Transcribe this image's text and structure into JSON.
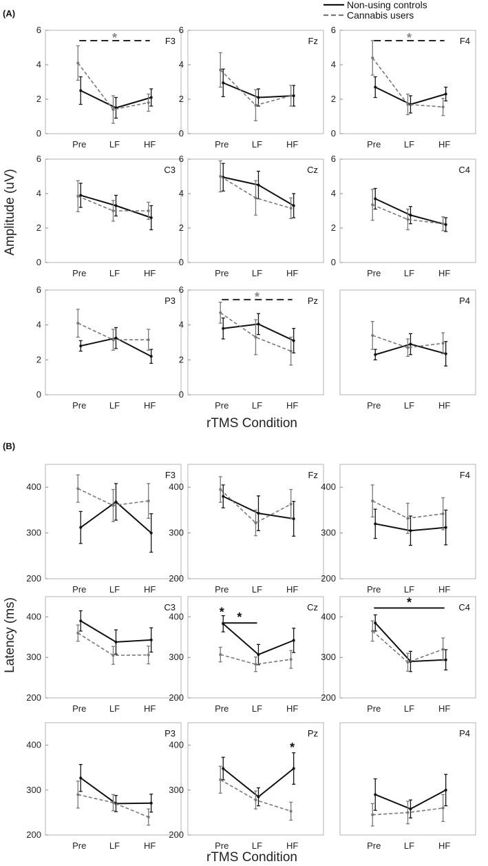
{
  "legend": {
    "items": [
      {
        "label": "Non-using controls",
        "style": "solid",
        "color": "#111111"
      },
      {
        "label": "Cannabis users",
        "style": "dashed",
        "color": "#777777"
      }
    ]
  },
  "sections": [
    {
      "label": "(A)",
      "ylabel": "Amplitude (uV)",
      "xlabel": "rTMS Condition",
      "chart_data": [
        {
          "type": "line",
          "title": "F3",
          "categories": [
            "Pre",
            "LF",
            "HF"
          ],
          "ylim": [
            0,
            6
          ],
          "yticks": [
            0,
            2,
            4,
            6
          ],
          "series": [
            {
              "name": "Non-using controls",
              "values": [
                2.5,
                1.5,
                2.1
              ],
              "err": [
                0.8,
                0.6,
                0.5
              ]
            },
            {
              "name": "Cannabis users",
              "values": [
                4.1,
                1.4,
                1.8
              ],
              "err": [
                1.0,
                0.8,
                0.5
              ]
            }
          ],
          "annotations": [
            {
              "text": "*",
              "style": "dashed",
              "from": "Pre",
              "to": "HF",
              "y": 5.4
            }
          ]
        },
        {
          "type": "line",
          "title": "Fz",
          "categories": [
            "Pre",
            "LF",
            "HF"
          ],
          "ylim": [
            0,
            6
          ],
          "yticks": [
            0,
            2,
            4,
            6
          ],
          "series": [
            {
              "name": "Non-using controls",
              "values": [
                2.95,
                2.1,
                2.2
              ],
              "err": [
                0.8,
                0.5,
                0.6
              ]
            },
            {
              "name": "Cannabis users",
              "values": [
                3.7,
                1.65,
                2.2
              ],
              "err": [
                1.0,
                0.9,
                0.6
              ]
            }
          ],
          "annotations": []
        },
        {
          "type": "line",
          "title": "F4",
          "categories": [
            "Pre",
            "LF",
            "HF"
          ],
          "ylim": [
            0,
            6
          ],
          "yticks": [
            0,
            2,
            4,
            6
          ],
          "series": [
            {
              "name": "Non-using controls",
              "values": [
                2.7,
                1.7,
                2.3
              ],
              "err": [
                0.6,
                0.5,
                0.4
              ]
            },
            {
              "name": "Cannabis users",
              "values": [
                4.4,
                1.7,
                1.55
              ],
              "err": [
                1.0,
                0.6,
                0.5
              ]
            }
          ],
          "annotations": [
            {
              "text": "*",
              "style": "dashed",
              "from": "Pre",
              "to": "HF",
              "y": 5.4
            }
          ]
        },
        {
          "type": "line",
          "title": "C3",
          "categories": [
            "Pre",
            "LF",
            "HF"
          ],
          "ylim": [
            0,
            6
          ],
          "yticks": [
            0,
            2,
            4,
            6
          ],
          "series": [
            {
              "name": "Non-using controls",
              "values": [
                3.9,
                3.3,
                2.6
              ],
              "err": [
                0.7,
                0.6,
                0.7
              ]
            },
            {
              "name": "Cannabis users",
              "values": [
                3.85,
                3.0,
                3.0
              ],
              "err": [
                0.9,
                0.6,
                0.5
              ]
            }
          ],
          "annotations": []
        },
        {
          "type": "line",
          "title": "Cz",
          "categories": [
            "Pre",
            "LF",
            "HF"
          ],
          "ylim": [
            0,
            6
          ],
          "yticks": [
            0,
            2,
            4,
            6
          ],
          "series": [
            {
              "name": "Non-using controls",
              "values": [
                4.95,
                4.5,
                3.3
              ],
              "err": [
                0.8,
                0.8,
                0.7
              ]
            },
            {
              "name": "Cannabis users",
              "values": [
                5.0,
                3.75,
                3.15
              ],
              "err": [
                0.9,
                1.0,
                0.6
              ]
            }
          ],
          "annotations": []
        },
        {
          "type": "line",
          "title": "C4",
          "categories": [
            "Pre",
            "LF",
            "HF"
          ],
          "ylim": [
            0,
            6
          ],
          "yticks": [
            0,
            2,
            4,
            6
          ],
          "series": [
            {
              "name": "Non-using controls",
              "values": [
                3.7,
                2.75,
                2.2
              ],
              "err": [
                0.6,
                0.5,
                0.4
              ]
            },
            {
              "name": "Cannabis users",
              "values": [
                3.35,
                2.5,
                2.25
              ],
              "err": [
                0.9,
                0.6,
                0.4
              ]
            }
          ],
          "annotations": []
        },
        {
          "type": "line",
          "title": "P3",
          "categories": [
            "Pre",
            "LF",
            "HF"
          ],
          "ylim": [
            0,
            6
          ],
          "yticks": [
            0,
            2,
            4,
            6
          ],
          "series": [
            {
              "name": "Non-using controls",
              "values": [
                2.8,
                3.25,
                2.2
              ],
              "err": [
                0.3,
                0.6,
                0.4
              ]
            },
            {
              "name": "Cannabis users",
              "values": [
                4.1,
                3.15,
                3.15
              ],
              "err": [
                0.8,
                0.6,
                0.6
              ]
            }
          ],
          "annotations": []
        },
        {
          "type": "line",
          "title": "Pz",
          "categories": [
            "Pre",
            "LF",
            "HF"
          ],
          "ylim": [
            0,
            6
          ],
          "yticks": [
            0,
            2,
            4,
            6
          ],
          "series": [
            {
              "name": "Non-using controls",
              "values": [
                3.8,
                4.05,
                3.1
              ],
              "err": [
                0.6,
                0.6,
                0.7
              ]
            },
            {
              "name": "Cannabis users",
              "values": [
                4.7,
                3.3,
                2.5
              ],
              "err": [
                0.6,
                1.0,
                0.8
              ]
            }
          ],
          "annotations": [
            {
              "text": "*",
              "style": "dashed",
              "from": "Pre",
              "to": "HF",
              "y": 5.45
            }
          ]
        },
        {
          "type": "line",
          "title": "P4",
          "categories": [
            "Pre",
            "LF",
            "HF"
          ],
          "ylim": [
            0,
            6
          ],
          "yticks": [],
          "series": [
            {
              "name": "Non-using controls",
              "values": [
                2.3,
                2.9,
                2.35
              ],
              "err": [
                0.3,
                0.6,
                0.7
              ]
            },
            {
              "name": "Cannabis users",
              "values": [
                3.4,
                2.7,
                2.95
              ],
              "err": [
                0.8,
                0.5,
                0.6
              ]
            }
          ],
          "annotations": []
        }
      ]
    },
    {
      "label": "(B)",
      "ylabel": "Latency (ms)",
      "xlabel": "rTMS Condition",
      "chart_data": [
        {
          "type": "line",
          "title": "F3",
          "categories": [
            "Pre",
            "LF",
            "HF"
          ],
          "ylim": [
            200,
            450
          ],
          "yticks": [
            200,
            300,
            400
          ],
          "series": [
            {
              "name": "Non-using controls",
              "values": [
                312,
                368,
                300
              ],
              "err": [
                35,
                40,
                42
              ]
            },
            {
              "name": "Cannabis users",
              "values": [
                397,
                360,
                370
              ],
              "err": [
                30,
                35,
                38
              ]
            }
          ],
          "annotations": []
        },
        {
          "type": "line",
          "title": "Fz",
          "categories": [
            "Pre",
            "LF",
            "HF"
          ],
          "ylim": [
            200,
            450
          ],
          "yticks": [
            200,
            300,
            400
          ],
          "series": [
            {
              "name": "Non-using controls",
              "values": [
                380,
                343,
                331
              ],
              "err": [
                25,
                38,
                38
              ]
            },
            {
              "name": "Cannabis users",
              "values": [
                395,
                322,
                363
              ],
              "err": [
                28,
                28,
                32
              ]
            }
          ],
          "annotations": []
        },
        {
          "type": "line",
          "title": "F4",
          "categories": [
            "Pre",
            "LF",
            "HF"
          ],
          "ylim": [
            200,
            450
          ],
          "yticks": [
            200,
            300,
            400
          ],
          "series": [
            {
              "name": "Non-using controls",
              "values": [
                320,
                305,
                312
              ],
              "err": [
                32,
                32,
                38
              ]
            },
            {
              "name": "Cannabis users",
              "values": [
                370,
                332,
                342
              ],
              "err": [
                35,
                33,
                35
              ]
            }
          ],
          "annotations": []
        },
        {
          "type": "line",
          "title": "C3",
          "categories": [
            "Pre",
            "LF",
            "HF"
          ],
          "ylim": [
            200,
            450
          ],
          "yticks": [
            200,
            300,
            400
          ],
          "series": [
            {
              "name": "Non-using controls",
              "values": [
                390,
                338,
                343
              ],
              "err": [
                25,
                30,
                30
              ]
            },
            {
              "name": "Cannabis users",
              "values": [
                360,
                305,
                306
              ],
              "err": [
                20,
                22,
                22
              ]
            }
          ],
          "annotations": []
        },
        {
          "type": "line",
          "title": "Cz",
          "categories": [
            "Pre",
            "LF",
            "HF"
          ],
          "ylim": [
            200,
            450
          ],
          "yticks": [
            200,
            300,
            400
          ],
          "series": [
            {
              "name": "Non-using controls",
              "values": [
                383,
                307,
                342
              ],
              "err": [
                20,
                25,
                30
              ]
            },
            {
              "name": "Cannabis users",
              "values": [
                307,
                283,
                295
              ],
              "err": [
                18,
                18,
                22
              ]
            }
          ],
          "annotations": [
            {
              "text": "*",
              "style": "star",
              "at": "Pre",
              "y": 412
            },
            {
              "text": "*",
              "style": "solid",
              "from": "Pre",
              "to": "LF",
              "y": 385
            }
          ]
        },
        {
          "type": "line",
          "title": "C4",
          "categories": [
            "Pre",
            "LF",
            "HF"
          ],
          "ylim": [
            200,
            450
          ],
          "yticks": [
            200,
            300,
            400
          ],
          "series": [
            {
              "name": "Non-using controls",
              "values": [
                385,
                290,
                294
              ],
              "err": [
                20,
                25,
                25
              ]
            },
            {
              "name": "Cannabis users",
              "values": [
                365,
                288,
                320
              ],
              "err": [
                25,
                22,
                28
              ]
            }
          ],
          "annotations": [
            {
              "text": "*",
              "style": "solid",
              "from": "Pre",
              "to": "HF",
              "y": 422
            }
          ]
        },
        {
          "type": "line",
          "title": "P3",
          "categories": [
            "Pre",
            "LF",
            "HF"
          ],
          "ylim": [
            200,
            450
          ],
          "yticks": [
            200,
            300,
            400
          ],
          "series": [
            {
              "name": "Non-using controls",
              "values": [
                327,
                270,
                271
              ],
              "err": [
                30,
                18,
                20
              ]
            },
            {
              "name": "Cannabis users",
              "values": [
                290,
                272,
                240
              ],
              "err": [
                30,
                18,
                18
              ]
            }
          ],
          "annotations": []
        },
        {
          "type": "line",
          "title": "Pz",
          "categories": [
            "Pre",
            "LF",
            "HF"
          ],
          "ylim": [
            200,
            450
          ],
          "yticks": [
            200,
            300,
            400
          ],
          "series": [
            {
              "name": "Non-using controls",
              "values": [
                348,
                285,
                348
              ],
              "err": [
                25,
                20,
                35
              ]
            },
            {
              "name": "Cannabis users",
              "values": [
                323,
                278,
                253
              ],
              "err": [
                30,
                20,
                20
              ]
            }
          ],
          "annotations": [
            {
              "text": "*",
              "style": "star",
              "at": "HF",
              "y": 395
            }
          ]
        },
        {
          "type": "line",
          "title": "P4",
          "categories": [
            "Pre",
            "LF",
            "HF"
          ],
          "ylim": [
            200,
            450
          ],
          "yticks": [],
          "series": [
            {
              "name": "Non-using controls",
              "values": [
                290,
                258,
                300
              ],
              "err": [
                35,
                20,
                35
              ]
            },
            {
              "name": "Cannabis users",
              "values": [
                245,
                250,
                260
              ],
              "err": [
                25,
                25,
                30
              ]
            }
          ],
          "annotations": []
        }
      ]
    }
  ]
}
